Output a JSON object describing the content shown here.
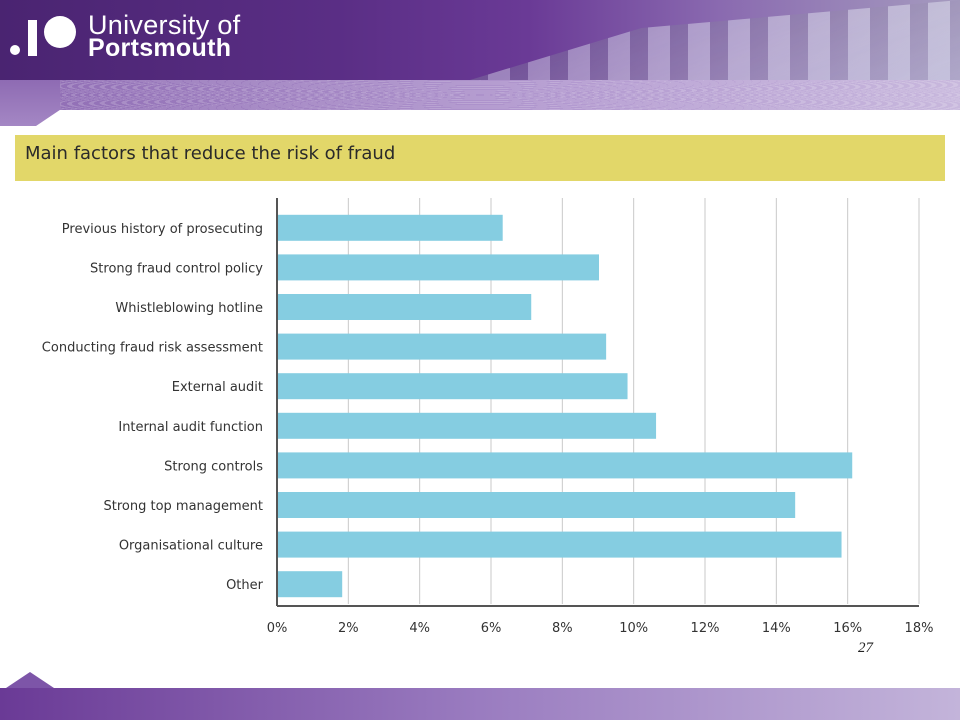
{
  "header": {
    "logo_line1": "University of",
    "logo_line2": "Portsmouth"
  },
  "slide_number": "27",
  "chart_data": {
    "type": "bar",
    "orientation": "horizontal",
    "title": "Main factors that reduce the risk of fraud",
    "categories": [
      "Previous history of prosecuting",
      "Strong fraud control policy",
      "Whistleblowing hotline",
      "Conducting fraud risk assessment",
      "External audit",
      "Internal audit function",
      "Strong controls",
      "Strong top management",
      "Organisational culture",
      "Other"
    ],
    "values": [
      6.3,
      9.0,
      7.1,
      9.2,
      9.8,
      10.6,
      16.1,
      14.5,
      15.8,
      1.8
    ],
    "xlim": [
      0,
      18
    ],
    "xticks": [
      "0%",
      "2%",
      "4%",
      "6%",
      "8%",
      "10%",
      "12%",
      "14%",
      "16%",
      "18%"
    ],
    "xlabel": "",
    "ylabel": "",
    "grid": true,
    "bar_color": "#85cde1",
    "title_bar_color": "#e2d769"
  }
}
